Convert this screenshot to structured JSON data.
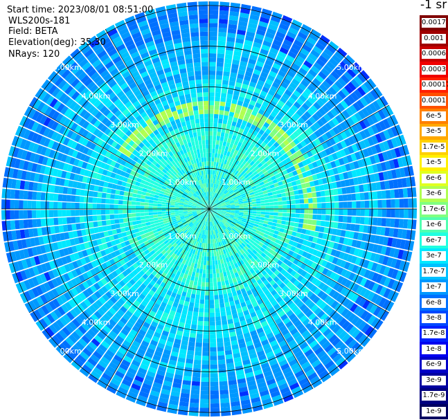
{
  "info": {
    "start_time": "Start time: 2023/08/01 08:51:00",
    "device": "WLS200s-181",
    "field": "Field: BETA",
    "elevation": "Elevation(deg): 35.30",
    "nrays": "NRays: 120"
  },
  "colorbar": {
    "title": "-1 sr",
    "labels": [
      "0.0017",
      "0.001",
      "0.0006",
      "0.0003",
      "0.00017",
      "0.0001",
      "6e-5",
      "3e-5",
      "1.7e-5",
      "1e-5",
      "6e-6",
      "3e-6",
      "1.7e-6",
      "1e-6",
      "6e-7",
      "3e-7",
      "1.7e-7",
      "1e-7",
      "6e-8",
      "3e-8",
      "1.7e-8",
      "1e-8",
      "6e-9",
      "3e-9",
      "1.7e-9",
      "1e-9"
    ],
    "colors": [
      "#800000",
      "#a00000",
      "#c80000",
      "#f00000",
      "#ff2000",
      "#ff5000",
      "#ff8000",
      "#ffa800",
      "#ffd000",
      "#fff000",
      "#e0ff20",
      "#b0ff50",
      "#80ff80",
      "#50ffb0",
      "#20ffe0",
      "#00e8ff",
      "#00c0ff",
      "#0098ff",
      "#0070ff",
      "#0048ff",
      "#0020ff",
      "#0000f0",
      "#0000c8",
      "#0000a0",
      "#000080",
      "#000060"
    ]
  },
  "chart_data": {
    "type": "heatmap",
    "projection": "polar (PPI scan)",
    "field": "BETA",
    "n_rays": 120,
    "elevation_deg": 35.3,
    "range_ring_labels": [
      "1.00km",
      "2.00km",
      "3.00km",
      "4.00km",
      "5.00km"
    ],
    "range_rings_km": [
      1,
      2,
      3,
      4,
      5
    ],
    "max_range_km": 5.1,
    "spokes_deg": [
      0,
      30,
      60,
      90,
      120,
      150,
      180,
      210,
      240,
      270,
      300,
      330
    ],
    "colorscale": "jet, logarithmic",
    "value_range": [
      "1e-9",
      "0.0017"
    ],
    "dominant_band": "1e-7 to 1e-6 (cyan / light blue)",
    "features": [
      {
        "description": "partial arc of higher backscatter",
        "range_km": 2.5,
        "value": "1.7e-6 to 6e-6"
      },
      {
        "description": "higher backscatter ring near center",
        "range_km": 0.9,
        "value": "1e-6 to 3e-6"
      }
    ]
  }
}
